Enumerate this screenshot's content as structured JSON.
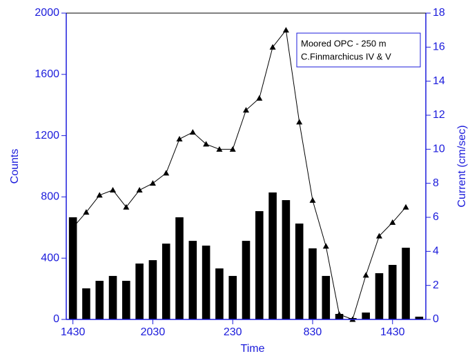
{
  "chart_data": {
    "type": "bar",
    "x_label": "Time",
    "y_label": "Counts",
    "y2_label": "Current (cm/sec)",
    "annotation": [
      "Moored OPC - 250 m",
      "C.Finmarchicus IV & V"
    ],
    "categories": [
      "1430",
      null,
      null,
      null,
      null,
      null,
      "2030",
      null,
      null,
      null,
      null,
      null,
      "230",
      null,
      null,
      null,
      null,
      null,
      "830",
      null,
      null,
      null,
      null,
      null,
      "1430",
      null,
      null
    ],
    "series": [
      {
        "type": "bar",
        "color": "#000000",
        "values": [
          667,
          203,
          252,
          284,
          252,
          365,
          387,
          495,
          667,
          513,
          482,
          333,
          284,
          513,
          707,
          829,
          779,
          626,
          464,
          284,
          36,
          9,
          45,
          302,
          356,
          468,
          18
        ]
      },
      {
        "type": "line",
        "axis": "y2",
        "color": "#000000",
        "values": [
          5.4,
          6.3,
          7.3,
          7.6,
          6.6,
          7.6,
          8.0,
          8.6,
          10.6,
          11.0,
          10.3,
          10.0,
          10.0,
          12.3,
          13.0,
          16.0,
          17.0,
          11.6,
          7.0,
          4.3,
          0.3,
          0,
          2.6,
          4.9,
          5.7,
          6.6,
          null
        ]
      }
    ],
    "ylim": [
      0,
      2000
    ],
    "yticks": [
      0,
      400,
      800,
      1200,
      1600,
      2000
    ],
    "y2lim": [
      0,
      18
    ],
    "y2ticks": [
      0,
      2,
      4,
      6,
      8,
      10,
      12,
      14,
      16,
      18
    ]
  }
}
